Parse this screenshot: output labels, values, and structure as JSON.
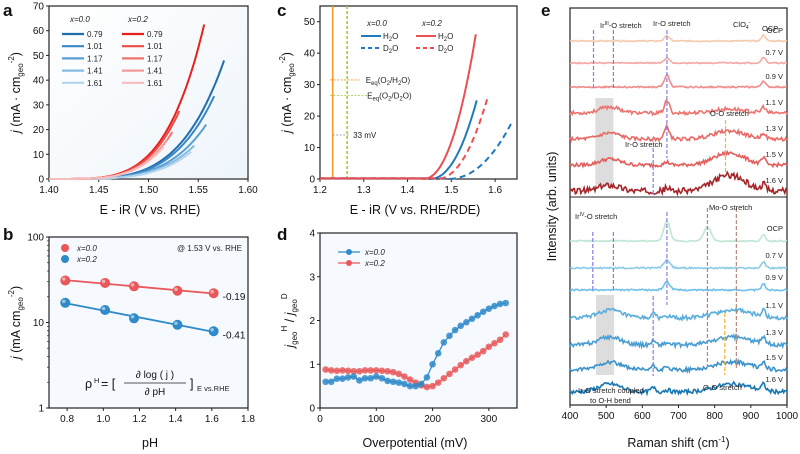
{
  "panel_labels": {
    "a": "a",
    "b": "b",
    "c": "c",
    "d": "d",
    "e": "e"
  },
  "chart_data": [
    {
      "id": "a",
      "type": "line",
      "title": "",
      "xlabel": "E - iR (V vs. RHE)",
      "ylabel": "j (mA · cm_geo^-2)",
      "xlim": [
        1.4,
        1.6
      ],
      "ylim": [
        0,
        70
      ],
      "xticks": [
        "1.40",
        "1.45",
        "1.50",
        "1.55",
        "1.60"
      ],
      "yticks": [
        "0",
        "10",
        "20",
        "30",
        "40",
        "50",
        "60",
        "70"
      ],
      "legend_headers": [
        "x=0.0",
        "x=0.2"
      ],
      "legend_position": "top-left",
      "series": [
        {
          "name": "x=0.0 pH 0.79",
          "group": "x=0.0",
          "label": "0.79",
          "color": "#1f6fb0",
          "x_end": 1.576,
          "y_end": 48
        },
        {
          "name": "x=0.0 pH 1.01",
          "group": "x=0.0",
          "label": "1.01",
          "color": "#3987c4",
          "x_end": 1.566,
          "y_end": 33.5
        },
        {
          "name": "x=0.0 pH 1.17",
          "group": "x=0.0",
          "label": "1.17",
          "color": "#5a9fd2",
          "x_end": 1.558,
          "y_end": 22
        },
        {
          "name": "x=0.0 pH 1.41",
          "group": "x=0.0",
          "label": "1.41",
          "color": "#86bbe0",
          "x_end": 1.546,
          "y_end": 13.5
        },
        {
          "name": "x=0.0 pH 1.61",
          "group": "x=0.0",
          "label": "1.61",
          "color": "#b4d5ee",
          "x_end": 1.543,
          "y_end": 11
        },
        {
          "name": "x=0.2 pH 0.79",
          "group": "x=0.2",
          "label": "0.79",
          "color": "#e8201e",
          "x_end": 1.556,
          "y_end": 62.5
        },
        {
          "name": "x=0.2 pH 1.01",
          "group": "x=0.2",
          "label": "1.01",
          "color": "#ec4a46",
          "x_end": 1.531,
          "y_end": 27.5
        },
        {
          "name": "x=0.2 pH 1.17",
          "group": "x=0.2",
          "label": "1.17",
          "color": "#f07370",
          "x_end": 1.524,
          "y_end": 19
        },
        {
          "name": "x=0.2 pH 1.41",
          "group": "x=0.2",
          "label": "1.41",
          "color": "#f39a97",
          "x_end": 1.519,
          "y_end": 16
        },
        {
          "name": "x=0.2 pH 1.61",
          "group": "x=0.2",
          "label": "1.61",
          "color": "#f7bcbb",
          "x_end": 1.515,
          "y_end": 13
        }
      ]
    },
    {
      "id": "b",
      "type": "scatter",
      "xlabel": "pH",
      "ylabel": "j (mA cm_geo^-2)",
      "yscale": "log",
      "xlim": [
        0.7,
        1.8
      ],
      "ylim": [
        1,
        100
      ],
      "xticks": [
        "0.8",
        "1.0",
        "1.2",
        "1.4",
        "1.6",
        "1.8"
      ],
      "yticks": [
        "1",
        "10",
        "100"
      ],
      "annotation": "@ 1.53 V vs. RHE",
      "equation": {
        "lhs": "ρH = [",
        "numerator": "∂ log ( j )",
        "denominator": "∂ pH",
        "rhs": "]",
        "subscript": "E vs.RHE"
      },
      "legend_position": "top-left",
      "series": [
        {
          "name": "x=0.0",
          "color": "#e8585a",
          "x": [
            0.79,
            1.01,
            1.17,
            1.41,
            1.61
          ],
          "y": [
            31,
            29,
            26.5,
            23.5,
            22
          ],
          "slope_label": "-0.19"
        },
        {
          "name": "x=0.2",
          "color": "#2e8ac8",
          "x": [
            0.79,
            1.01,
            1.17,
            1.41,
            1.61
          ],
          "y": [
            17,
            14,
            11.2,
            9.4,
            7.9
          ],
          "slope_label": "-0.41"
        }
      ]
    },
    {
      "id": "c",
      "type": "line",
      "xlabel": "E - iR (V vs. RHE/RDE)",
      "ylabel": "j (mA · cm_geo^-2)",
      "xlim": [
        1.2,
        1.65
      ],
      "ylim": [
        0,
        55
      ],
      "xticks": [
        "1.2",
        "1.3",
        "1.4",
        "1.5",
        "1.6"
      ],
      "yticks": [
        "0",
        "10",
        "20",
        "30",
        "40",
        "50"
      ],
      "legend_headers": [
        "x=0.0",
        "x=0.2"
      ],
      "legend_position": "top-right",
      "vlines": [
        {
          "x": 1.229,
          "color": "#f29a2e",
          "style": "solid",
          "label": "Eeq(O2/H2O)",
          "label_y": 31.5
        },
        {
          "x": 1.262,
          "color": "#9ccf3c",
          "style": "dashed",
          "label": "Eeq(O2/D2O)",
          "label_y": 26.5
        }
      ],
      "gap_annotation": {
        "text": "33 mV",
        "y": 14,
        "color": "#8a8a8a"
      },
      "series": [
        {
          "name": "x=0.0 H2O",
          "color": "#1f79bd",
          "style": "solid",
          "onset": 1.45,
          "x_end": 1.558,
          "y_end": 25
        },
        {
          "name": "x=0.0 D2O",
          "color": "#1f79bd",
          "style": "dashed",
          "onset": 1.49,
          "x_end": 1.64,
          "y_end": 18.5
        },
        {
          "name": "x=0.2 H2O",
          "color": "#ea4f54",
          "style": "solid",
          "onset": 1.435,
          "x_end": 1.556,
          "y_end": 46
        },
        {
          "name": "x=0.2 D2O",
          "color": "#ea4f54",
          "style": "dashed",
          "onset": 1.465,
          "x_end": 1.584,
          "y_end": 26.5
        }
      ],
      "legend_labels": [
        "H2O",
        "D2O",
        "H2O",
        "D2O"
      ]
    },
    {
      "id": "d",
      "type": "scatter",
      "xlabel": "Overpotential (mV)",
      "ylabel": "j_geo^H / j_geo^D",
      "xlim": [
        0,
        350
      ],
      "ylim": [
        0,
        4
      ],
      "xticks": [
        "0",
        "100",
        "200",
        "300"
      ],
      "yticks": [
        "0",
        "1",
        "2",
        "3",
        "4"
      ],
      "legend_position": "top-left",
      "series": [
        {
          "name": "x=0.0",
          "color": "#2e8ac8",
          "x": [
            10,
            20,
            30,
            40,
            50,
            60,
            70,
            80,
            90,
            100,
            110,
            120,
            130,
            140,
            150,
            160,
            170,
            180,
            190,
            200,
            210,
            220,
            230,
            240,
            250,
            260,
            270,
            280,
            290,
            300,
            310,
            320,
            330
          ],
          "y": [
            0.6,
            0.6,
            0.67,
            0.67,
            0.7,
            0.72,
            0.63,
            0.68,
            0.68,
            0.72,
            0.68,
            0.62,
            0.6,
            0.58,
            0.55,
            0.5,
            0.5,
            0.55,
            0.7,
            1.0,
            1.25,
            1.5,
            1.65,
            1.78,
            1.88,
            1.96,
            2.04,
            2.12,
            2.2,
            2.27,
            2.33,
            2.38,
            2.4
          ]
        },
        {
          "name": "x=0.2",
          "color": "#e8585a",
          "x": [
            10,
            20,
            30,
            40,
            50,
            60,
            70,
            80,
            90,
            100,
            110,
            120,
            130,
            140,
            150,
            160,
            170,
            180,
            190,
            200,
            210,
            220,
            230,
            240,
            250,
            260,
            270,
            280,
            290,
            300,
            310,
            320,
            330
          ],
          "y": [
            0.88,
            0.86,
            0.85,
            0.86,
            0.85,
            0.84,
            0.84,
            0.86,
            0.86,
            0.86,
            0.85,
            0.84,
            0.82,
            0.78,
            0.72,
            0.65,
            0.58,
            0.52,
            0.48,
            0.5,
            0.58,
            0.68,
            0.78,
            0.88,
            0.98,
            1.07,
            1.15,
            1.22,
            1.3,
            1.4,
            1.48,
            1.56,
            1.68
          ]
        }
      ]
    },
    {
      "id": "e",
      "type": "line",
      "xlabel": "Raman shift (cm-1)",
      "ylabel": "Intensity (arb. units)",
      "xlim": [
        400,
        1000
      ],
      "xticks": [
        "400",
        "500",
        "600",
        "700",
        "800",
        "900",
        "1000"
      ],
      "top_panel": {
        "potentials": [
          "OCP",
          "0.7 V",
          "0.9 V",
          "1.1 V",
          "1.3 V",
          "1.5 V",
          "1.6 V"
        ],
        "colors": [
          "#f6c9ae",
          "#f4a8a4",
          "#ef8c8c",
          "#ec7470",
          "#e86a66",
          "#e15e5c",
          "#a5262a"
        ],
        "annotations": [
          "IrIII-O stretch",
          "Ir-O stretch",
          "ClO4-",
          "O-O stretch",
          "Ir-O stretch"
        ],
        "vlines": [
          {
            "x": 465,
            "color": "#8a7de0"
          },
          {
            "x": 520,
            "color": "#8a7de0"
          },
          {
            "x": 668,
            "color": "#8a7de0"
          },
          {
            "x": 630,
            "color": "#8a7de0"
          },
          {
            "x": 830,
            "color": "#f5b52a"
          }
        ],
        "shaded_range": [
          470,
          520
        ]
      },
      "bottom_panel": {
        "potentials": [
          "OCP",
          "0.7 V",
          "0.9 V",
          "1.1 V",
          "1.3 V",
          "1.5 V",
          "1.6 V"
        ],
        "colors": [
          "#bfe6d4",
          "#8ccbe8",
          "#6fc0ea",
          "#5aaedd",
          "#4b9ed3",
          "#3d92c8",
          "#1877b5"
        ],
        "annotations": [
          "IrIV-O stretch",
          "Mo-O stretch",
          "Ir-O stretch coupled to O-H bend",
          "O-O stretch"
        ],
        "vlines": [
          {
            "x": 463,
            "color": "#8a7de0"
          },
          {
            "x": 520,
            "color": "#8a7de0"
          },
          {
            "x": 668,
            "color": "#8a7de0"
          },
          {
            "x": 630,
            "color": "#8a7de0"
          },
          {
            "x": 780,
            "color": "#b08a80"
          },
          {
            "x": 860,
            "color": "#b08a80"
          },
          {
            "x": 828,
            "color": "#f5b52a"
          }
        ],
        "shaded_range": [
          472,
          522
        ]
      }
    }
  ],
  "text": {
    "a_legend_h0": "x=0.0",
    "a_legend_h1": "x=0.2",
    "b_annotation": "@ 1.53 V vs. RHE",
    "c_eeq1": "Eeq(O2/H2O)",
    "c_eeq2": "Eeq(O2/D2O)",
    "c_33mv": "33 mV",
    "e_top_irIII": "IrIII-O stretch",
    "e_top_iro": "Ir-O stretch",
    "e_top_clo4": "ClO4-",
    "e_top_oo": "O-O stretch",
    "e_top_iro2": "Ir-O stretch",
    "e_bot_irIV": "IrIV-O stretch",
    "e_bot_moo": "Mo-O stretch",
    "e_bot_iroh1": "Ir-O stretch coupled",
    "e_bot_iroh2": "to O-H bend",
    "e_bot_oo": "O-O stretch",
    "e_ylabel": "Intensity (arb. units)",
    "e_xlabel": "Raman shift (cm",
    "pH": "pH",
    "overpot": "Overpotential (mV)"
  }
}
